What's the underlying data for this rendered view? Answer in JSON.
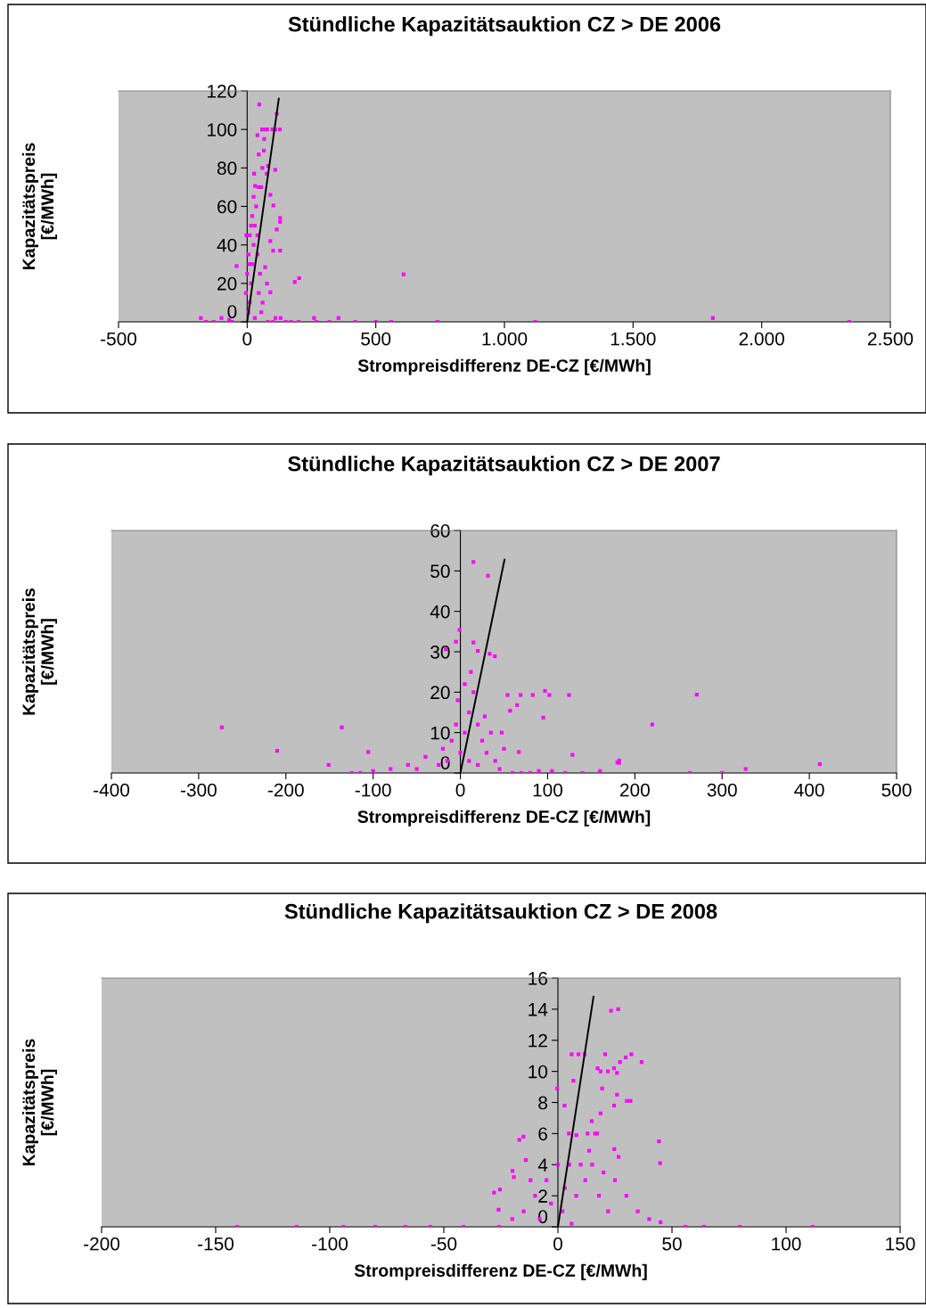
{
  "chart_data": [
    {
      "type": "scatter",
      "title": "Stündliche Kapazitätsauktion CZ > DE 2006",
      "xlabel": "Strompreisdifferenz DE-CZ [€/MWh]",
      "ylabel": "Kapazitätspreis\n[€/MWh]",
      "xlim": [
        -500,
        2500
      ],
      "xticks": [
        -500,
        0,
        500,
        {
          "value": 1000,
          "label": "1.000"
        },
        {
          "value": 1500,
          "label": "1.500"
        },
        {
          "value": 2000,
          "label": "2.000"
        },
        {
          "value": 2500,
          "label": "2.500"
        }
      ],
      "ylim": [
        0,
        120
      ],
      "yticks": [
        0,
        20,
        40,
        60,
        80,
        100,
        120
      ],
      "marker": "square",
      "series": [
        {
          "color": "#ff00ff",
          "x": [
            47,
            40,
            45,
            65,
            58,
            72,
            78,
            98,
            109,
            127,
            115,
            66,
            59,
            81,
            109,
            76,
            27,
            31,
            55,
            90,
            102,
            128,
            128,
            115,
            128,
            101,
            90,
            -41,
            185,
            202,
            608,
            90,
            77,
            70,
            5,
            10,
            15,
            20,
            25,
            30,
            35,
            20,
            10,
            5,
            0,
            -5,
            40,
            50,
            45,
            55,
            30,
            60,
            25,
            45,
            15,
            -3,
            8,
            40,
            -180,
            -160,
            -130,
            -100,
            -70,
            -60,
            80,
            100,
            110,
            130,
            150,
            170,
            200,
            260,
            270,
            320,
            355,
            420,
            500,
            560,
            740,
            1120,
            1810,
            2340
          ],
          "values": [
            113,
            97,
            87,
            89,
            100,
            100,
            100,
            100,
            100,
            100,
            108,
            95,
            80,
            81,
            79,
            77,
            77,
            70.6,
            70,
            66,
            60.5,
            54,
            52,
            48,
            37,
            37,
            42,
            29,
            20.7,
            22.7,
            24.7,
            15.4,
            19.9,
            28.4,
            5,
            10,
            20,
            30,
            40,
            50,
            60,
            55,
            45,
            35,
            25,
            15,
            35,
            25,
            15,
            5,
            2,
            10,
            65,
            70,
            50,
            45,
            30,
            45,
            2,
            0,
            0,
            2,
            1,
            0,
            0,
            0,
            2,
            2,
            0,
            0,
            0,
            2,
            0,
            0,
            2,
            0,
            0,
            0,
            0,
            0,
            2,
            0
          ]
        },
        {
          "type": "line",
          "color": "#000000",
          "marker": "none",
          "x": [
            0,
            123
          ],
          "values": [
            0,
            116
          ]
        }
      ]
    },
    {
      "type": "scatter",
      "title": "Stündliche Kapazitätsauktion CZ > DE 2007",
      "xlabel": "Strompreisdifferenz DE-CZ [€/MWh]",
      "ylabel": "Kapazitätspreis\n[€/MWh]",
      "xlim": [
        -400,
        500
      ],
      "xticks": [
        -400,
        -300,
        -200,
        -100,
        0,
        100,
        200,
        300,
        400,
        500
      ],
      "ylim": [
        0,
        60
      ],
      "yticks": [
        0,
        10,
        20,
        30,
        40,
        50,
        60
      ],
      "marker": "square",
      "series": [
        {
          "color": "#ff00ff",
          "x": [
            -273.5,
            -136,
            -210,
            -151,
            -105.5,
            -124.5,
            -114.6,
            15,
            31.6,
            -1,
            -5,
            -16.6,
            15,
            20,
            33.6,
            39.5,
            54,
            69,
            83,
            97,
            102,
            124.5,
            95,
            65,
            57,
            47.4,
            67,
            128.5,
            182,
            182,
            220,
            271,
            412,
            327,
            263,
            180,
            0,
            5,
            10,
            -5,
            -10,
            15,
            20,
            25,
            30,
            35,
            40,
            -15,
            -20,
            -25,
            10,
            20,
            5,
            -3,
            12,
            28,
            45,
            50,
            -40,
            -50,
            -60,
            -80,
            -100,
            60,
            70,
            80,
            90,
            105,
            120,
            140,
            160,
            300
          ],
          "values": [
            11.3,
            11.3,
            5.5,
            2,
            5.2,
            0,
            0,
            52.2,
            48.8,
            35.4,
            32.5,
            30.6,
            32.3,
            30.2,
            29.5,
            28.9,
            19.3,
            19.3,
            19.3,
            20.3,
            19.3,
            19.3,
            13.7,
            16.8,
            15.4,
            10,
            5.2,
            4.5,
            3.1,
            2.5,
            12,
            19.4,
            2.2,
            1,
            0,
            2.6,
            5,
            10,
            15,
            12,
            8,
            20,
            12,
            8,
            5,
            10,
            3,
            3,
            6,
            2,
            3,
            2,
            22,
            18,
            25,
            14,
            1,
            6,
            4,
            1,
            2,
            1,
            0.5,
            0,
            0,
            0,
            0.5,
            0.5,
            0,
            0,
            0.5,
            0
          ]
        },
        {
          "type": "line",
          "color": "#000000",
          "marker": "none",
          "x": [
            0,
            50.6
          ],
          "values": [
            0,
            52.8
          ]
        }
      ]
    },
    {
      "type": "scatter",
      "title": "Stündliche Kapazitätsauktion CZ > DE 2008",
      "xlabel": "Strompreisdifferenz DE-CZ [€/MWh]",
      "ylabel": "Kapazitätspreis\n[€/MWh]",
      "xlim": [
        -200,
        150
      ],
      "xticks": [
        -200,
        -150,
        -100,
        -50,
        0,
        50,
        100,
        150
      ],
      "ylim": [
        0,
        16
      ],
      "yticks": [
        0,
        2,
        4,
        6,
        8,
        10,
        12,
        14,
        16
      ],
      "marker": "square",
      "series": [
        {
          "color": "#ff00ff",
          "x": [
            23.3,
            26.4,
            6,
            9,
            11.7,
            20.7,
            32.2,
            29.7,
            36.7,
            27.2,
            17.4,
            18.7,
            21.9,
            24.6,
            25.9,
            6.8,
            -0.3,
            19.4,
            25.9,
            30.2,
            31.8,
            2.9,
            24.6,
            18.7,
            14.8,
            13,
            16.3,
            17.2,
            4.8,
            8.1,
            -15.1,
            -16.9,
            44.3,
            44.8,
            24.7,
            26.6,
            13.7,
            -14.1,
            -19.9,
            -19.3,
            -25.4,
            -28,
            -26,
            -15,
            -10,
            -5,
            0,
            5,
            10,
            15,
            -8,
            2,
            8,
            12,
            18,
            22,
            25,
            30,
            35,
            40,
            45,
            -20,
            -12,
            3,
            6,
            20,
            -3,
            -140.6,
            -114.5,
            -94,
            -80,
            -66.8,
            -55.9,
            -41.4,
            -25.8,
            56,
            64,
            79.7,
            111.7
          ],
          "values": [
            13.9,
            14,
            11.1,
            11.1,
            11.1,
            11.1,
            11.1,
            10.9,
            10.6,
            10.6,
            10.2,
            10,
            10,
            10.2,
            9.9,
            9.4,
            8.9,
            8.9,
            8.5,
            8.1,
            8.1,
            7.8,
            7.8,
            7.3,
            6.8,
            6,
            6,
            6,
            6,
            5.9,
            5.8,
            5.6,
            5.5,
            4.1,
            5,
            4.5,
            4.9,
            4.3,
            3.6,
            3.2,
            2.4,
            2.2,
            1.1,
            1,
            2,
            3,
            4,
            4,
            4,
            4,
            0.5,
            1,
            2,
            3,
            2,
            1,
            3,
            2,
            1,
            0.5,
            0.3,
            0.5,
            3,
            2.5,
            0.2,
            3.5,
            1.5,
            0,
            0,
            0,
            0,
            0,
            0,
            0,
            0,
            0,
            0,
            0,
            0
          ]
        },
        {
          "type": "line",
          "color": "#000000",
          "marker": "none",
          "x": [
            0,
            15.6
          ],
          "values": [
            0,
            14.8
          ]
        }
      ]
    }
  ]
}
